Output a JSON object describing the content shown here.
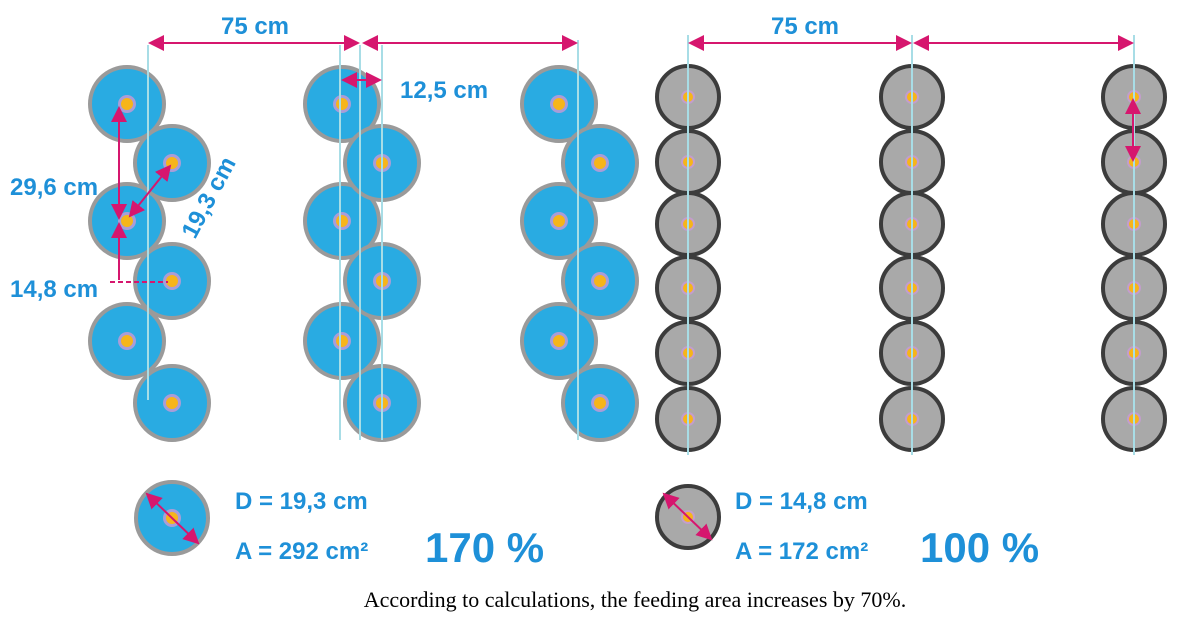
{
  "left": {
    "row_spacing": "75 cm",
    "row_offset": "12,5 cm",
    "vertical_distance": "29,6 cm",
    "diagonal_distance": "19,3 cm",
    "plant_spacing": "14,8 cm",
    "diameter": "D = 19,3 cm",
    "area": "A = 292 cm²",
    "percent": "170 %"
  },
  "right": {
    "row_spacing": "75 cm",
    "diameter": "D = 14,8 cm",
    "area": "A = 172 cm²",
    "percent": "100 %"
  },
  "caption": "According to calculations, the feeding area increases by 70%."
}
